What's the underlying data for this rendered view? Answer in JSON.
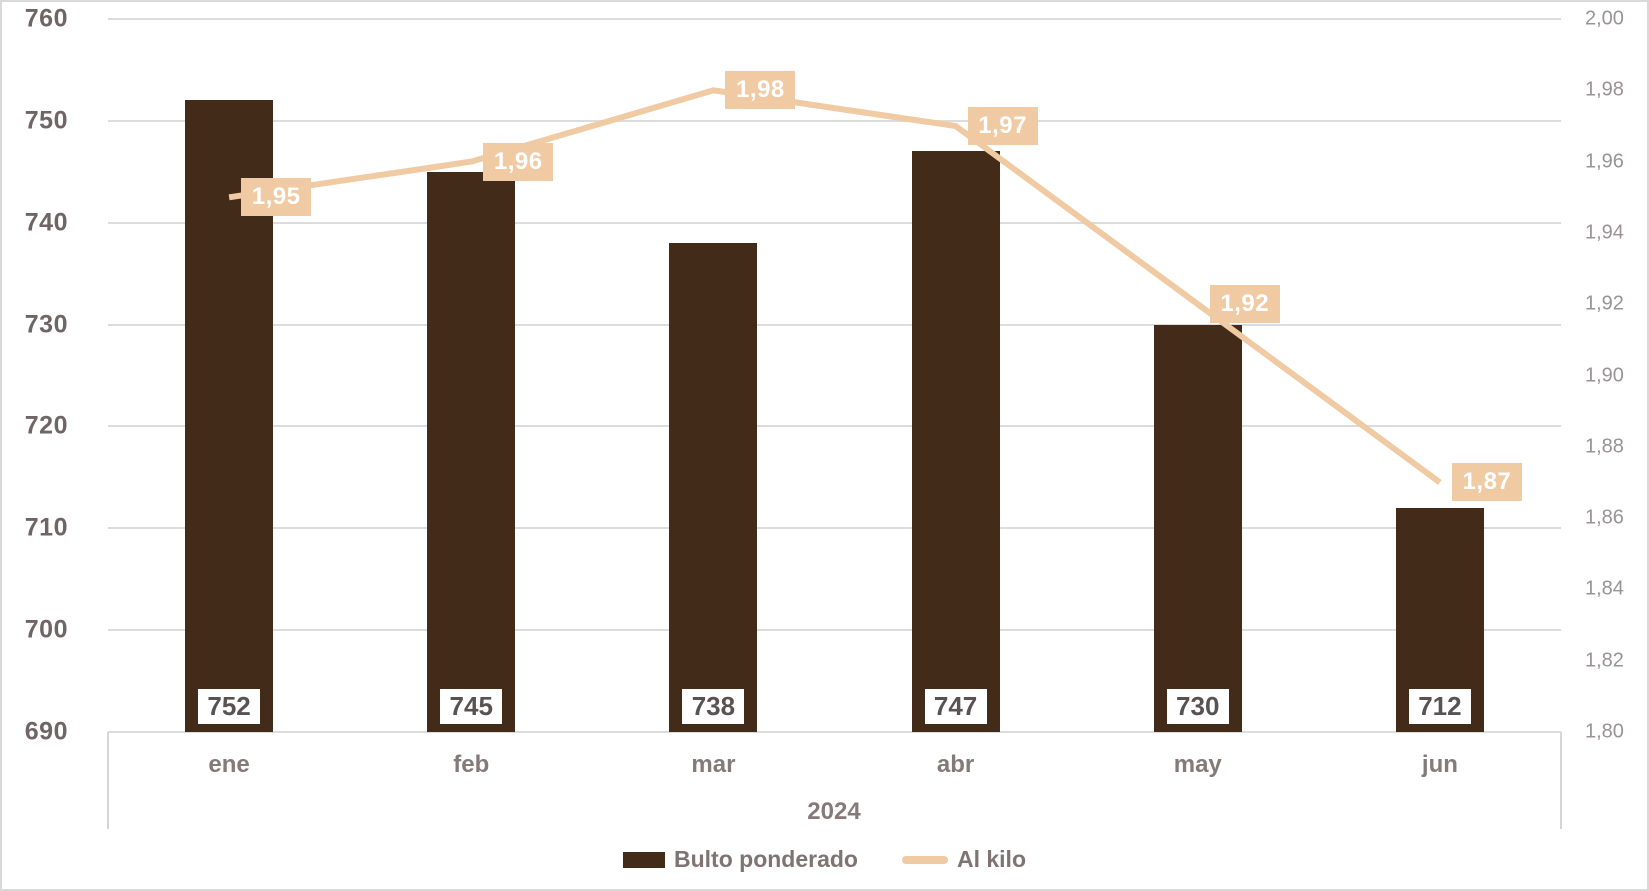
{
  "chart_data": {
    "type": "combo",
    "title": "",
    "categories": [
      "ene",
      "feb",
      "mar",
      "abr",
      "may",
      "jun"
    ],
    "x_axis_group_label": "2024",
    "series": [
      {
        "name": "Bulto ponderado",
        "type": "bar",
        "axis": "left",
        "values": [
          752,
          745,
          738,
          747,
          730,
          712
        ],
        "data_labels": [
          "752",
          "745",
          "738",
          "747",
          "730",
          "712"
        ],
        "color": "#422b18"
      },
      {
        "name": "Al kilo",
        "type": "line",
        "axis": "right",
        "values": [
          1.95,
          1.96,
          1.98,
          1.97,
          1.92,
          1.87
        ],
        "data_labels": [
          "1,95",
          "1,96",
          "1,98",
          "1,97",
          "1,92",
          "1,87"
        ],
        "color": "#efcaa3"
      }
    ],
    "left_axis": {
      "min": 690,
      "max": 760,
      "step": 10,
      "tick_labels": [
        "760",
        "750",
        "740",
        "730",
        "720",
        "710",
        "700",
        "690"
      ]
    },
    "right_axis": {
      "min": 1.8,
      "max": 2.0,
      "step": 0.02,
      "tick_labels": [
        "2,00",
        "1,98",
        "1,96",
        "1,94",
        "1,92",
        "1,90",
        "1,88",
        "1,86",
        "1,84",
        "1,82",
        "1,80"
      ]
    },
    "legend": [
      {
        "label": "Bulto ponderado",
        "swatch": "bar"
      },
      {
        "label": "Al kilo",
        "swatch": "line"
      }
    ],
    "grid": "horizontal",
    "legend_position": "bottom",
    "colors": {
      "bar": "#422b18",
      "line": "#efcaa3",
      "gridline": "#dcdcdc",
      "left_tick_text": "#6f6566",
      "right_tick_text": "#999394",
      "category_text": "#847a7a",
      "bar_label_text": "#585253",
      "line_label_text": "#ffffff",
      "border": "#d9d9d9"
    }
  }
}
